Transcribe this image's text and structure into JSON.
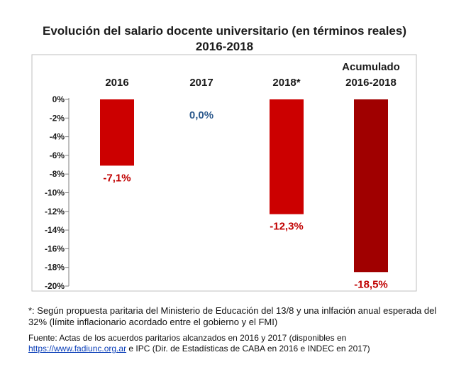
{
  "title_line1": "Evolución del salario docente universitario (en términos reales)",
  "title_line2": "2016-2018",
  "chart_data": {
    "type": "bar",
    "categories": [
      "2016",
      "2017",
      "2018*",
      "Acumulado 2016-2018"
    ],
    "category_lines": [
      [
        "2016"
      ],
      [
        "2017"
      ],
      [
        "2018*"
      ],
      [
        "Acumulado",
        "2016-2018"
      ]
    ],
    "values": [
      -7.1,
      0.0,
      -12.3,
      -18.5
    ],
    "data_labels": [
      "-7,1%",
      "0,0%",
      "-12,3%",
      "-18,5%"
    ],
    "yticks": [
      "0%",
      "-2%",
      "-4%",
      "-6%",
      "-8%",
      "-10%",
      "-12%",
      "-14%",
      "-16%",
      "-18%",
      "-20%"
    ],
    "ylim": [
      -20,
      0
    ],
    "grid": false,
    "colors": {
      "bar": "#cc0000",
      "bar_cumulative": "#a00000",
      "label_negative": "#c00000",
      "label_zero": "#2e5b8e",
      "category_text": "#1a1a1a"
    }
  },
  "footnote": "*: Según propuesta paritaria del Ministerio de Educación del 13/8 y una inlfación anual esperada del 32% (límite inflacionario acordado entre el gobierno y el FMI)",
  "source": {
    "prefix": "Fuente: Actas de los acuerdos paritarios alcanzados en 2016 y 2017  (disponibles en",
    "link_text": "https://www.fadiunc.org.ar",
    "suffix": " e IPC (Dir. de Estadísticas de CABA en 2016 e INDEC en 2017)"
  }
}
